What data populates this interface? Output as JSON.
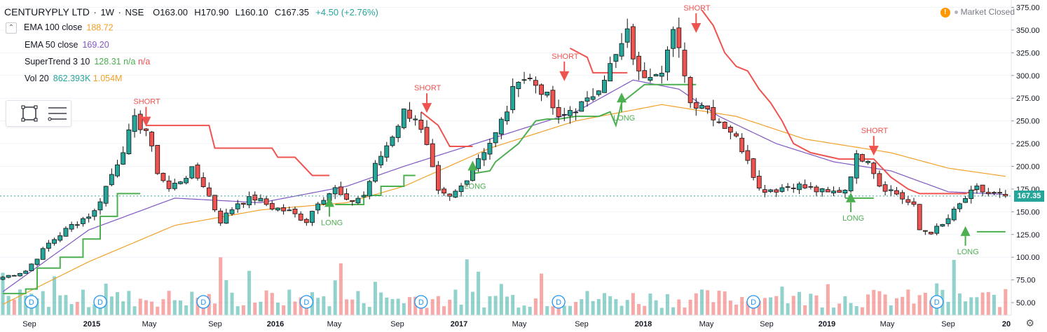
{
  "header": {
    "symbol": "CENTURYPLY LTD",
    "interval": "1W",
    "exchange": "NSE",
    "open": "O163.00",
    "high": "H170.90",
    "low": "L160.10",
    "close": "C167.35",
    "change": "+4.50 (+2.76%)"
  },
  "indicators": [
    {
      "name": "EMA 100 close",
      "values": [
        "188.72"
      ],
      "colors": [
        "#f2a12a"
      ]
    },
    {
      "name": "EMA 50 close",
      "values": [
        "169.20"
      ],
      "colors": [
        "#7e57c2"
      ]
    },
    {
      "name": "SuperTrend 3 10",
      "values": [
        "128.31",
        "n/a",
        "n/a"
      ],
      "colors": [
        "#4caf50",
        "#4caf50",
        "#ef5350"
      ]
    },
    {
      "name": "Vol 20",
      "values": [
        "862.393K",
        "1.054M"
      ],
      "colors": [
        "#26a69a",
        "#f2a12a"
      ]
    }
  ],
  "toggle_icon": "chevron-up-icon",
  "market_status": "Market Closed",
  "warning_icon": "!",
  "current_price": "167.35",
  "colors": {
    "up": "#26a69a",
    "down": "#ef5350",
    "ema100": "#f2a12a",
    "ema50": "#7e57c2",
    "st_up": "#4caf50",
    "st_down": "#ef5350"
  },
  "chart_data": {
    "type": "candlestick",
    "x_ticks": [
      "Sep",
      "2015",
      "May",
      "Sep",
      "2016",
      "May",
      "Sep",
      "2017",
      "May",
      "Sep",
      "2018",
      "May",
      "Sep",
      "2019",
      "May",
      "Sep",
      "20"
    ],
    "y_ticks": [
      50,
      75,
      100,
      125,
      150,
      175,
      200,
      225,
      250,
      275,
      300,
      325,
      350,
      375
    ],
    "ylim": [
      30,
      380
    ],
    "close_path": [
      [
        0,
        78
      ],
      [
        4,
        85
      ],
      [
        8,
        115
      ],
      [
        12,
        135
      ],
      [
        16,
        150
      ],
      [
        20,
        205
      ],
      [
        23,
        250
      ],
      [
        25,
        240
      ],
      [
        27,
        195
      ],
      [
        29,
        175
      ],
      [
        31,
        185
      ],
      [
        33,
        195
      ],
      [
        35,
        180
      ],
      [
        38,
        140
      ],
      [
        41,
        160
      ],
      [
        44,
        165
      ],
      [
        47,
        155
      ],
      [
        50,
        150
      ],
      [
        53,
        140
      ],
      [
        55,
        162
      ],
      [
        58,
        175
      ],
      [
        60,
        160
      ],
      [
        63,
        168
      ],
      [
        65,
        200
      ],
      [
        68,
        235
      ],
      [
        70,
        260
      ],
      [
        72,
        255
      ],
      [
        74,
        220
      ],
      [
        76,
        170
      ],
      [
        78,
        165
      ],
      [
        80,
        178
      ],
      [
        83,
        210
      ],
      [
        86,
        235
      ],
      [
        88,
        263
      ],
      [
        90,
        300
      ],
      [
        92,
        295
      ],
      [
        94,
        285
      ],
      [
        96,
        265
      ],
      [
        97,
        250
      ],
      [
        99,
        262
      ],
      [
        102,
        270
      ],
      [
        105,
        300
      ],
      [
        107,
        320
      ],
      [
        109,
        345
      ],
      [
        111,
        300
      ],
      [
        113,
        305
      ],
      [
        115,
        310
      ],
      [
        117,
        345
      ],
      [
        119,
        305
      ],
      [
        120,
        270
      ],
      [
        122,
        270
      ],
      [
        125,
        250
      ],
      [
        127,
        240
      ],
      [
        130,
        210
      ],
      [
        132,
        175
      ],
      [
        135,
        175
      ],
      [
        138,
        180
      ],
      [
        141,
        175
      ],
      [
        144,
        170
      ],
      [
        147,
        175
      ],
      [
        149,
        210
      ],
      [
        151,
        210
      ],
      [
        153,
        180
      ],
      [
        156,
        170
      ],
      [
        159,
        155
      ],
      [
        160,
        130
      ],
      [
        162,
        128
      ],
      [
        164,
        135
      ],
      [
        166,
        150
      ],
      [
        168,
        165
      ],
      [
        170,
        175
      ],
      [
        172,
        170
      ],
      [
        175,
        167.35
      ]
    ],
    "ema100": [
      [
        0,
        48
      ],
      [
        15,
        95
      ],
      [
        30,
        135
      ],
      [
        45,
        152
      ],
      [
        60,
        160
      ],
      [
        70,
        178
      ],
      [
        85,
        220
      ],
      [
        100,
        250
      ],
      [
        115,
        268
      ],
      [
        128,
        255
      ],
      [
        140,
        230
      ],
      [
        155,
        215
      ],
      [
        165,
        198
      ],
      [
        175,
        189
      ]
    ],
    "ema50": [
      [
        0,
        62
      ],
      [
        15,
        130
      ],
      [
        30,
        165
      ],
      [
        45,
        160
      ],
      [
        60,
        178
      ],
      [
        70,
        200
      ],
      [
        80,
        220
      ],
      [
        90,
        240
      ],
      [
        100,
        260
      ],
      [
        110,
        295
      ],
      [
        118,
        285
      ],
      [
        125,
        255
      ],
      [
        135,
        225
      ],
      [
        145,
        205
      ],
      [
        155,
        195
      ],
      [
        165,
        172
      ],
      [
        175,
        169
      ]
    ],
    "supertrend_segments": [
      {
        "dir": "up",
        "points": [
          [
            0,
            60
          ],
          [
            4,
            60
          ],
          [
            4,
            65
          ],
          [
            6,
            65
          ],
          [
            6,
            88
          ],
          [
            10,
            88
          ],
          [
            10,
            100
          ],
          [
            14,
            100
          ],
          [
            14,
            120
          ],
          [
            17,
            120
          ],
          [
            17,
            145
          ],
          [
            20,
            145
          ],
          [
            20,
            170
          ],
          [
            24,
            170
          ]
        ]
      },
      {
        "dir": "down",
        "points": [
          [
            25,
            245
          ],
          [
            36,
            245
          ],
          [
            37,
            220
          ],
          [
            47,
            220
          ],
          [
            48,
            210
          ],
          [
            51,
            210
          ],
          [
            54,
            190
          ],
          [
            57,
            190
          ]
        ]
      },
      {
        "dir": "up",
        "points": [
          [
            58,
            158
          ],
          [
            63,
            158
          ],
          [
            63,
            168
          ],
          [
            66,
            168
          ],
          [
            66,
            178
          ],
          [
            70,
            178
          ],
          [
            70,
            190
          ],
          [
            72,
            190
          ]
        ]
      },
      {
        "dir": "down",
        "points": [
          [
            73,
            260
          ],
          [
            76,
            245
          ],
          [
            78,
            222
          ],
          [
            82,
            222
          ]
        ]
      },
      {
        "dir": "up",
        "points": [
          [
            82,
            192
          ],
          [
            85,
            195
          ],
          [
            86,
            205
          ],
          [
            90,
            225
          ],
          [
            93,
            250
          ],
          [
            95,
            252
          ],
          [
            97,
            252
          ],
          [
            100,
            255
          ],
          [
            104,
            255
          ],
          [
            106,
            260
          ],
          [
            107,
            245
          ],
          [
            108,
            270
          ],
          [
            112,
            290
          ],
          [
            121,
            290
          ]
        ]
      },
      {
        "dir": "down",
        "points": [
          [
            99,
            330
          ],
          [
            102,
            320
          ],
          [
            103,
            303
          ],
          [
            107,
            303
          ],
          [
            109,
            303
          ]
        ]
      },
      {
        "dir": "down",
        "points": [
          [
            122,
            372
          ],
          [
            124,
            355
          ],
          [
            126,
            325
          ],
          [
            128,
            310
          ],
          [
            130,
            305
          ],
          [
            132,
            285
          ],
          [
            134,
            270
          ],
          [
            136,
            250
          ],
          [
            138,
            225
          ],
          [
            141,
            215
          ],
          [
            146,
            208
          ],
          [
            152,
            208
          ],
          [
            155,
            188
          ],
          [
            158,
            175
          ],
          [
            160,
            170
          ],
          [
            165,
            170
          ],
          [
            168,
            170
          ],
          [
            170,
            175
          ]
        ]
      },
      {
        "dir": "up",
        "points": [
          [
            147,
            165
          ],
          [
            152,
            165
          ]
        ]
      },
      {
        "dir": "up",
        "points": [
          [
            170,
            128
          ],
          [
            175,
            128
          ]
        ]
      }
    ],
    "signals": [
      {
        "type": "SHORT",
        "x": 25,
        "y": 250
      },
      {
        "type": "LONG",
        "x": 57,
        "y": 160
      },
      {
        "type": "SHORT",
        "x": 74,
        "y": 265
      },
      {
        "type": "LONG",
        "x": 82,
        "y": 200
      },
      {
        "type": "SHORT",
        "x": 98,
        "y": 300
      },
      {
        "type": "LONG",
        "x": 108,
        "y": 275
      },
      {
        "type": "SHORT",
        "x": 121,
        "y": 353
      },
      {
        "type": "LONG",
        "x": 148,
        "y": 165
      },
      {
        "type": "SHORT",
        "x": 152,
        "y": 218
      },
      {
        "type": "LONG",
        "x": 168,
        "y": 128
      }
    ],
    "volume_mean": 30,
    "dividends": [
      5,
      17,
      35,
      53,
      73,
      97,
      131,
      163
    ]
  }
}
